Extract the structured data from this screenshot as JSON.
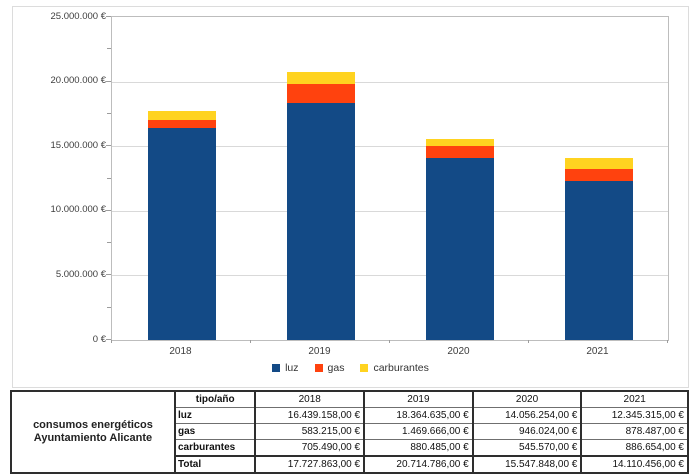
{
  "chart_data": {
    "type": "bar",
    "stacked": true,
    "categories": [
      "2018",
      "2019",
      "2020",
      "2021"
    ],
    "series": [
      {
        "name": "luz",
        "color": "#134a86",
        "values": [
          16439158,
          18364635,
          14056254,
          12345315
        ]
      },
      {
        "name": "gas",
        "color": "#ff420e",
        "values": [
          583215,
          1469666,
          946024,
          878487
        ]
      },
      {
        "name": "carburantes",
        "color": "#ffd320",
        "values": [
          705490,
          880485,
          545570,
          886654
        ]
      }
    ],
    "totals": [
      17727863,
      20714786,
      15547848,
      14110456
    ],
    "title": "",
    "xlabel": "",
    "ylabel": "",
    "ylim": [
      0,
      25000000
    ],
    "y_major_step": 5000000,
    "y_tick_labels": [
      "0 €",
      "5.000.000 €",
      "10.000.000 €",
      "15.000.000 €",
      "20.000.000 €",
      "25.000.000 €"
    ],
    "grid": true,
    "legend_position": "bottom"
  },
  "table": {
    "title_lines": [
      "consumos energéticos",
      "Ayuntamiento Alicante"
    ],
    "corner_label": "tipo/año",
    "columns": [
      "2018",
      "2019",
      "2020",
      "2021"
    ],
    "rows": [
      {
        "label": "luz",
        "values": [
          "16.439.158,00 €",
          "18.364.635,00 €",
          "14.056.254,00 €",
          "12.345.315,00 €"
        ]
      },
      {
        "label": "gas",
        "values": [
          "583.215,00 €",
          "1.469.666,00 €",
          "946.024,00 €",
          "878.487,00 €"
        ]
      },
      {
        "label": "carburantes",
        "values": [
          "705.490,00 €",
          "880.485,00 €",
          "545.570,00 €",
          "886.654,00 €"
        ]
      },
      {
        "label": "Total",
        "values": [
          "17.727.863,00 €",
          "20.714.786,00 €",
          "15.547.848,00 €",
          "14.110.456,00 €"
        ]
      }
    ]
  }
}
